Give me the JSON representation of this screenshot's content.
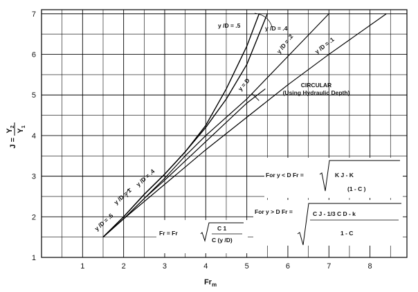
{
  "chart_data": {
    "type": "line",
    "xlabel": "Fr",
    "xlabel_sub": "m",
    "ylabel_parts": {
      "j": "J =",
      "num": "Y",
      "num_sub": "2",
      "den": "Y",
      "den_sub": "1"
    },
    "xlim": [
      0,
      8.9
    ],
    "ylim": [
      1,
      7.1
    ],
    "xticks": [
      1,
      2,
      3,
      4,
      5,
      6,
      7,
      8
    ],
    "yticks": [
      1,
      2,
      3,
      4,
      5,
      6,
      7
    ],
    "grid": true,
    "series": [
      {
        "name": "y1/D = .5",
        "x": [
          1.5,
          2.0,
          2.5,
          3.0,
          3.5,
          4.0,
          4.5,
          5.0,
          5.3
        ],
        "y": [
          1.5,
          2.0,
          2.55,
          3.05,
          3.6,
          4.25,
          5.15,
          6.2,
          7.0
        ]
      },
      {
        "name": "y1/D = .4",
        "x": [
          1.5,
          2.0,
          2.5,
          3.0,
          3.5,
          4.0,
          4.5,
          5.0,
          5.5
        ],
        "y": [
          1.5,
          2.0,
          2.55,
          3.05,
          3.6,
          4.2,
          4.9,
          5.75,
          7.0
        ]
      },
      {
        "name": "y1/D = .2",
        "x": [
          1.5,
          2.0,
          2.5,
          3.0,
          3.5,
          4.0,
          5.0,
          6.0,
          7.0
        ],
        "y": [
          1.5,
          1.95,
          2.45,
          2.95,
          3.5,
          4.0,
          4.9,
          5.95,
          7.0
        ]
      },
      {
        "name": "y1/D = .1",
        "x": [
          1.5,
          2.0,
          3.0,
          4.0,
          5.0,
          6.0,
          7.0,
          8.4
        ],
        "y": [
          1.5,
          1.95,
          2.8,
          3.65,
          4.45,
          5.25,
          6.0,
          7.0
        ]
      },
      {
        "name": "y2 = D",
        "x": [
          1.5,
          2.0,
          2.5,
          3.0,
          4.0,
          5.0,
          5.45
        ],
        "y": [
          1.5,
          1.95,
          2.45,
          2.9,
          3.85,
          4.8,
          5.15
        ]
      }
    ],
    "labels": {
      "y1_5_top": "y  /D = .5",
      "y1_4_top": "y  /D = .4",
      "y1_2": "y  /D = .2",
      "y1_1": "y  /D = .1",
      "y2_D": "y  = D",
      "circular": "CIRCULAR",
      "circular_sub": "(Using Hydraulic Depth)",
      "y2_1_low": "y  /D = 1",
      "y1_4_low": "y  /D = .4",
      "y1_5_low": "y  /D = .5"
    },
    "equations": {
      "eq1_left": "For y  < D  Fr  =",
      "eq1_num": "K   J - K",
      "eq1_den": "(1 - C )",
      "eq2_left": "For y  > D  Fr  =",
      "eq2_num": "C  J - 1/3 C  D  - k",
      "eq2_den": "1 - C",
      "eq3_left": "Fr  = Fr",
      "eq3_rhs": "C  1",
      "eq3_den": "C  (y /D)"
    }
  }
}
